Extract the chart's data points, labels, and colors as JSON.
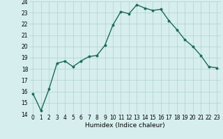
{
  "x": [
    0,
    1,
    2,
    3,
    4,
    5,
    6,
    7,
    8,
    9,
    10,
    11,
    12,
    13,
    14,
    15,
    16,
    17,
    18,
    19,
    20,
    21,
    22,
    23
  ],
  "y": [
    15.8,
    14.3,
    16.2,
    18.5,
    18.7,
    18.2,
    18.7,
    19.1,
    19.2,
    20.1,
    21.9,
    23.1,
    22.9,
    23.7,
    23.4,
    23.2,
    23.3,
    22.3,
    21.5,
    20.6,
    20.0,
    19.2,
    18.2,
    18.1
  ],
  "line_color": "#1a6b5a",
  "marker": "o",
  "marker_size": 1.8,
  "linewidth": 1.0,
  "bg_color": "#d6eeee",
  "grid_color": "#b0d0d0",
  "xlabel": "Humidex (Indice chaleur)",
  "xlim": [
    -0.5,
    23.5
  ],
  "ylim": [
    14,
    24
  ],
  "yticks": [
    14,
    15,
    16,
    17,
    18,
    19,
    20,
    21,
    22,
    23,
    24
  ],
  "xtick_labels": [
    "0",
    "1",
    "2",
    "3",
    "4",
    "5",
    "6",
    "7",
    "8",
    "9",
    "10",
    "11",
    "12",
    "13",
    "14",
    "15",
    "16",
    "17",
    "18",
    "19",
    "20",
    "21",
    "22",
    "23"
  ],
  "xlabel_fontsize": 6.5,
  "tick_fontsize": 5.5
}
